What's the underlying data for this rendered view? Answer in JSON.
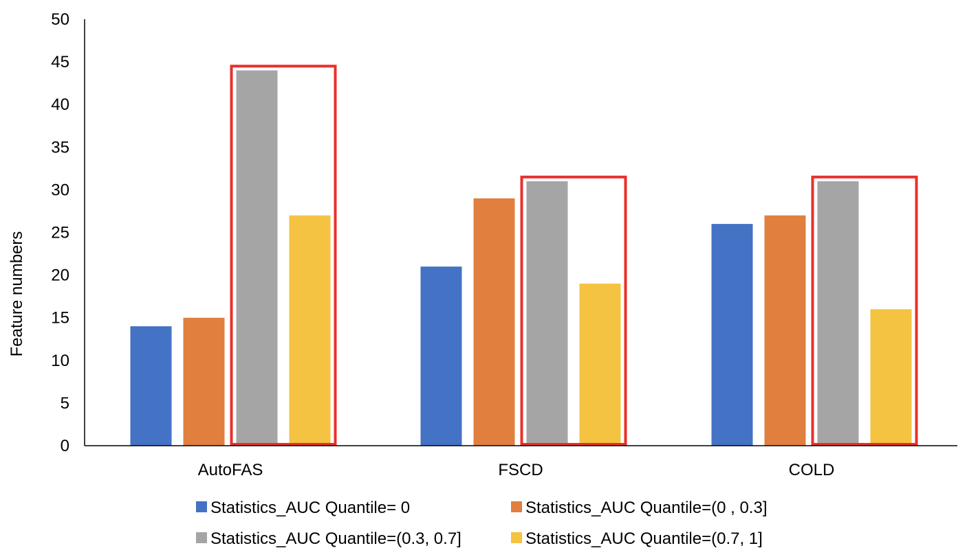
{
  "chart_data": {
    "type": "bar",
    "title": "",
    "xlabel": "",
    "ylabel": "Feature numbers",
    "ylim": [
      0,
      50
    ],
    "yticks": [
      0,
      5,
      10,
      15,
      20,
      25,
      30,
      35,
      40,
      45,
      50
    ],
    "categories": [
      "AutoFAS",
      "FSCD",
      "COLD"
    ],
    "series": [
      {
        "name": "Statistics_AUC  Quantile= 0",
        "color": "#4472C4",
        "values": [
          14,
          21,
          26
        ]
      },
      {
        "name": "Statistics_AUC Quantile=(0 , 0.3]",
        "color": "#E07F3E",
        "values": [
          15,
          29,
          27
        ]
      },
      {
        "name": "Statistics_AUC Quantile=(0.3, 0.7]",
        "color": "#A5A5A5",
        "values": [
          44,
          31,
          31
        ]
      },
      {
        "name": "Statistics_AUC Quantile=(0.7,  1]",
        "color": "#F5C342",
        "values": [
          27,
          19,
          16
        ]
      }
    ],
    "highlights": [
      {
        "category": "AutoFAS",
        "series": [
          2,
          3
        ],
        "color": "#E8302A",
        "top_value": 44.5
      },
      {
        "category": "FSCD",
        "series": [
          2,
          3
        ],
        "color": "#E8302A",
        "top_value": 31.5
      },
      {
        "category": "COLD",
        "series": [
          2,
          3
        ],
        "color": "#E8302A",
        "top_value": 31.5
      }
    ],
    "legend": "bottom",
    "grid": false
  }
}
